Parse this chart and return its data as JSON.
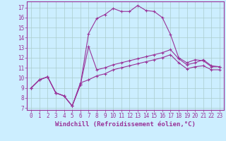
{
  "background_color": "#cceeff",
  "grid_color": "#aacccc",
  "line_color": "#993399",
  "xlabel": "Windchill (Refroidissement éolien,°C)",
  "xlabel_fontsize": 6.5,
  "yticks": [
    7,
    8,
    9,
    10,
    11,
    12,
    13,
    14,
    15,
    16,
    17
  ],
  "xticks": [
    0,
    1,
    2,
    3,
    4,
    5,
    6,
    7,
    8,
    9,
    10,
    11,
    12,
    13,
    14,
    15,
    16,
    17,
    18,
    19,
    20,
    21,
    22,
    23
  ],
  "ylim": [
    6.8,
    17.6
  ],
  "xlim": [
    -0.5,
    23.5
  ],
  "series_big_x": [
    0,
    1,
    2,
    3,
    4,
    5,
    6,
    7,
    8,
    9,
    10,
    11,
    12,
    13,
    14,
    15,
    16,
    17,
    18,
    19,
    20,
    21,
    22,
    23
  ],
  "series_big_y": [
    9.0,
    9.8,
    10.1,
    8.5,
    8.2,
    7.2,
    9.3,
    14.4,
    15.9,
    16.3,
    16.9,
    16.6,
    16.6,
    17.2,
    16.7,
    16.6,
    16.0,
    14.3,
    12.0,
    11.5,
    11.8,
    11.7,
    11.1,
    11.1
  ],
  "series_mid_x": [
    0,
    1,
    2,
    3,
    4,
    5,
    6,
    7,
    8,
    9,
    10,
    11,
    12,
    13,
    14,
    15,
    16,
    17,
    18,
    19,
    20,
    21,
    22,
    23
  ],
  "series_mid_y": [
    9.0,
    9.8,
    10.1,
    8.5,
    8.2,
    7.2,
    9.3,
    13.1,
    10.8,
    11.0,
    11.3,
    11.5,
    11.7,
    11.9,
    12.1,
    12.3,
    12.5,
    12.8,
    11.9,
    11.3,
    11.5,
    11.8,
    11.2,
    11.1
  ],
  "series_low_x": [
    0,
    1,
    2,
    3,
    4,
    5,
    6,
    7,
    8,
    9,
    10,
    11,
    12,
    13,
    14,
    15,
    16,
    17,
    18,
    19,
    20,
    21,
    22,
    23
  ],
  "series_low_y": [
    9.0,
    9.8,
    10.1,
    8.5,
    8.2,
    7.2,
    9.5,
    9.8,
    10.2,
    10.4,
    10.8,
    11.0,
    11.2,
    11.4,
    11.6,
    11.8,
    12.0,
    12.3,
    11.5,
    10.9,
    11.1,
    11.2,
    10.8,
    10.8
  ],
  "tick_fontsize": 5.5,
  "marker": "+"
}
